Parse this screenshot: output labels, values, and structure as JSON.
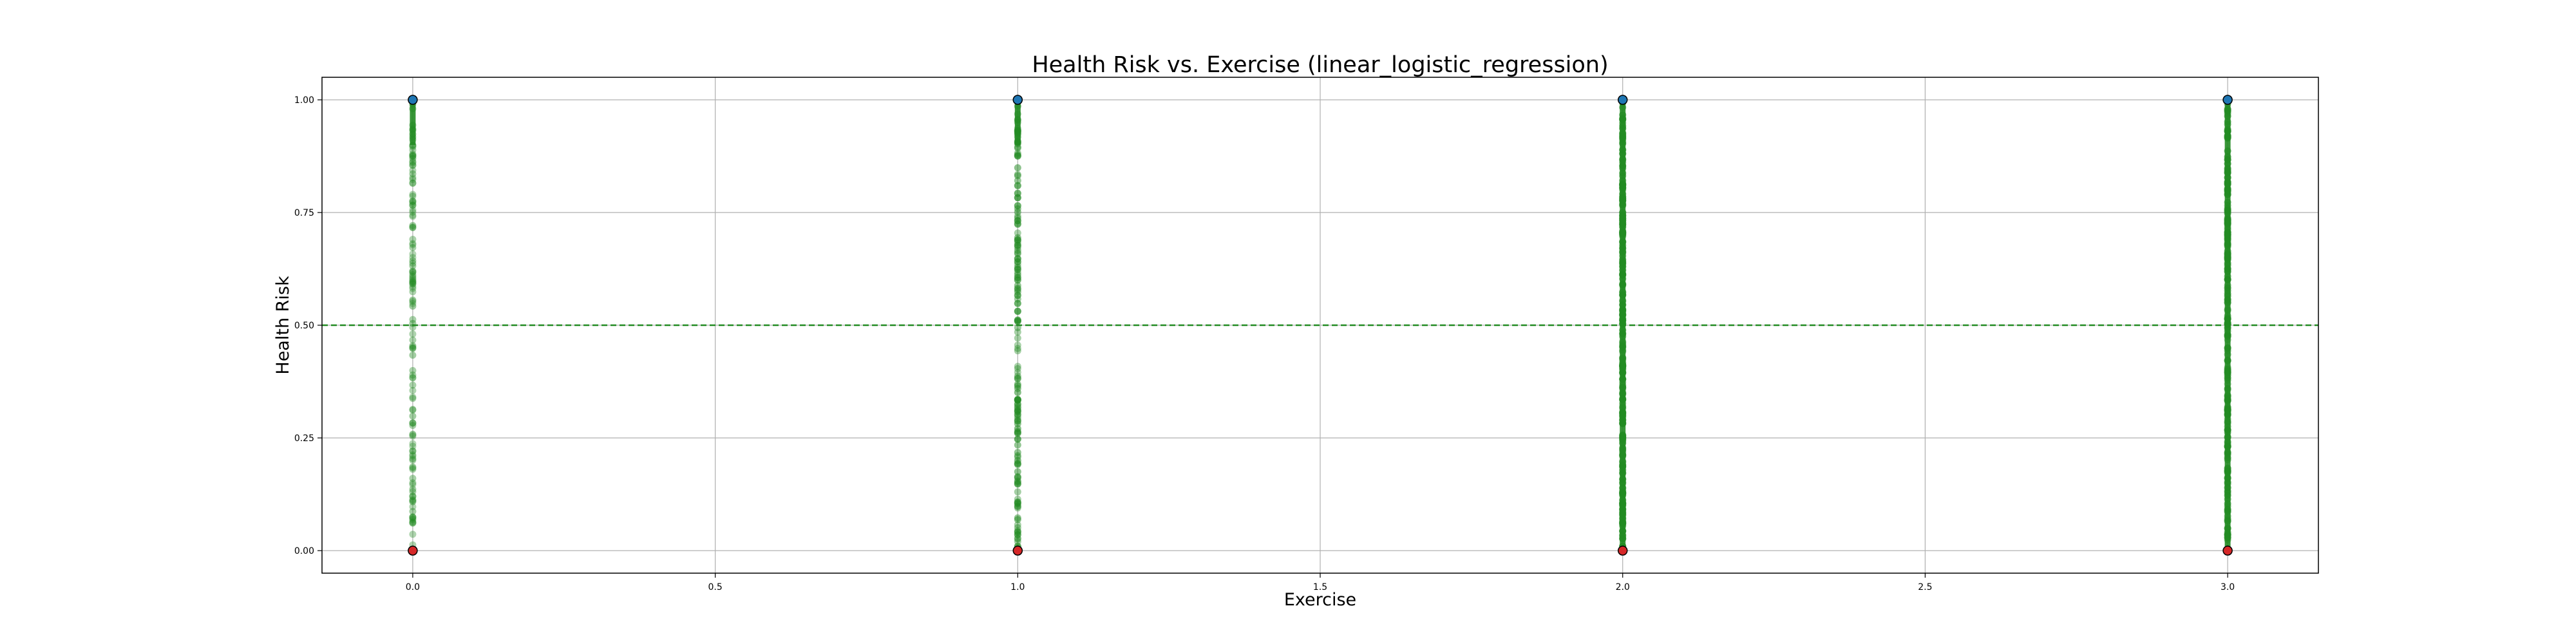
{
  "chart_data": {
    "type": "scatter",
    "title": "Health Risk vs. Exercise (linear_logistic_regression)",
    "xlabel": "Exercise",
    "ylabel": "Health Risk",
    "xlim": [
      -0.15,
      3.15
    ],
    "ylim": [
      -0.05,
      1.05
    ],
    "x_ticks": [
      "0.0",
      "0.5",
      "1.0",
      "1.5",
      "2.0",
      "2.5",
      "3.0"
    ],
    "y_ticks": [
      "0.00",
      "0.25",
      "0.50",
      "0.75",
      "1.00"
    ],
    "grid": true,
    "threshold": 0.5,
    "categories": [
      0,
      1,
      2,
      3
    ],
    "series": [
      {
        "values": [
          1,
          1,
          1,
          1
        ],
        "color": "#1f77b4"
      },
      {
        "values": [
          0,
          0,
          0,
          0
        ],
        "color": "#d62728"
      }
    ],
    "prediction_color": "#228b22",
    "threshold_color": "#228b22",
    "prediction_density": [
      0.35,
      0.55,
      0.95,
      0.85
    ]
  }
}
